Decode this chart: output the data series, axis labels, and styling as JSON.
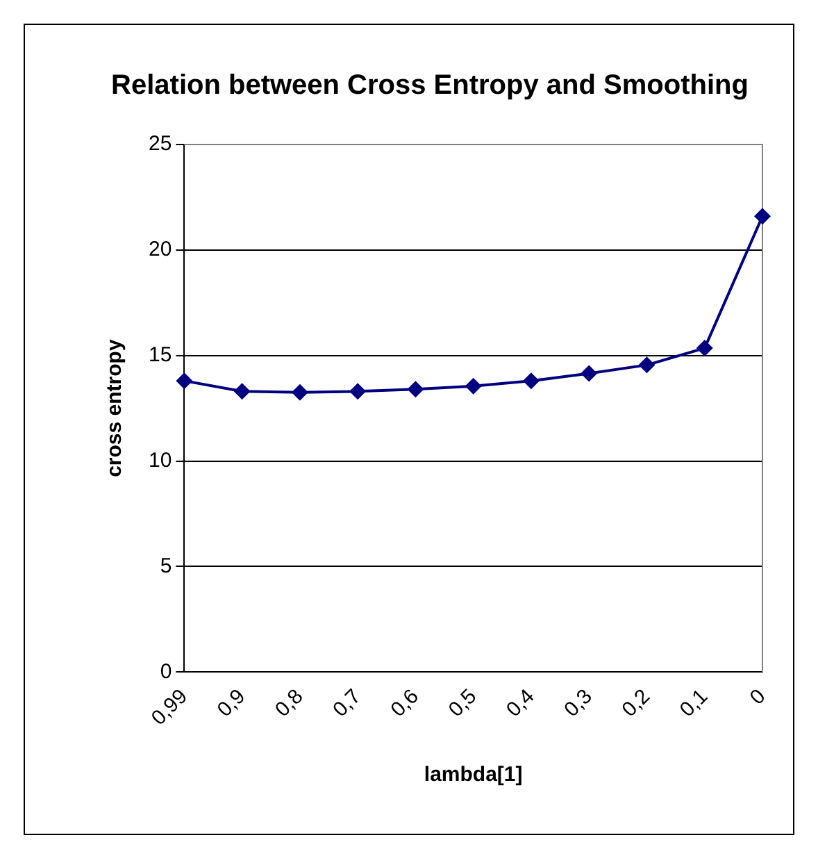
{
  "chart_data": {
    "type": "line",
    "title": "Relation between Cross Entropy and Smoothing",
    "xlabel": "lambda[1]",
    "ylabel": "cross entropy",
    "categories": [
      "0,99",
      "0,9",
      "0,8",
      "0,7",
      "0,6",
      "0,5",
      "0,4",
      "0,3",
      "0,2",
      "0,1",
      "0"
    ],
    "series": [
      {
        "color": "#000080",
        "values": [
          13.8,
          13.3,
          13.25,
          13.3,
          13.4,
          13.55,
          13.8,
          14.15,
          14.55,
          15.35,
          21.6
        ]
      }
    ],
    "ylim": [
      0,
      25
    ],
    "yticks": [
      0,
      5,
      10,
      15,
      20,
      25
    ],
    "grid": "y",
    "legend": false,
    "marker": "diamond",
    "line_style": "solid"
  }
}
